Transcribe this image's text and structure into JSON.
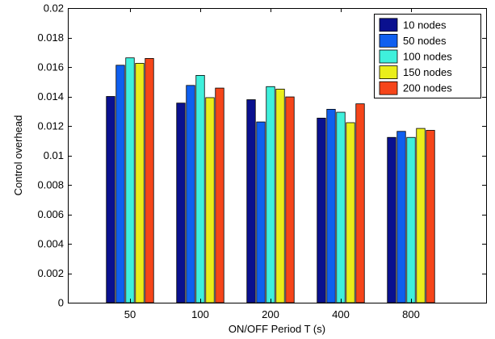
{
  "chart_data": {
    "type": "bar",
    "title": "",
    "xlabel": "ON/OFF Period T (s)",
    "ylabel": "Control overhead",
    "categories": [
      "50",
      "100",
      "200",
      "400",
      "800"
    ],
    "ylim": [
      0,
      0.02
    ],
    "yticks": [
      0,
      0.002,
      0.004,
      0.006,
      0.008,
      0.01,
      0.012,
      0.014,
      0.016,
      0.018,
      0.02
    ],
    "ytick_labels": [
      "0",
      "0.002",
      "0.004",
      "0.006",
      "0.008",
      "0.01",
      "0.012",
      "0.014",
      "0.016",
      "0.018",
      "0.02"
    ],
    "grid": false,
    "legend_position": "top-right",
    "series": [
      {
        "name": "10 nodes",
        "color": "#0a108f",
        "values": [
          0.014,
          0.01355,
          0.01378,
          0.01253,
          0.01122
        ]
      },
      {
        "name": "50 nodes",
        "color": "#0f5fef",
        "values": [
          0.01612,
          0.01475,
          0.01227,
          0.01313,
          0.01163
        ]
      },
      {
        "name": "100 nodes",
        "color": "#3ff0dc",
        "values": [
          0.01662,
          0.01543,
          0.01467,
          0.01293,
          0.01122
        ]
      },
      {
        "name": "150 nodes",
        "color": "#eaee1a",
        "values": [
          0.01625,
          0.01392,
          0.0145,
          0.01222,
          0.01183
        ]
      },
      {
        "name": "200 nodes",
        "color": "#f5451a",
        "values": [
          0.01658,
          0.01457,
          0.01397,
          0.0135,
          0.0117
        ]
      }
    ]
  }
}
